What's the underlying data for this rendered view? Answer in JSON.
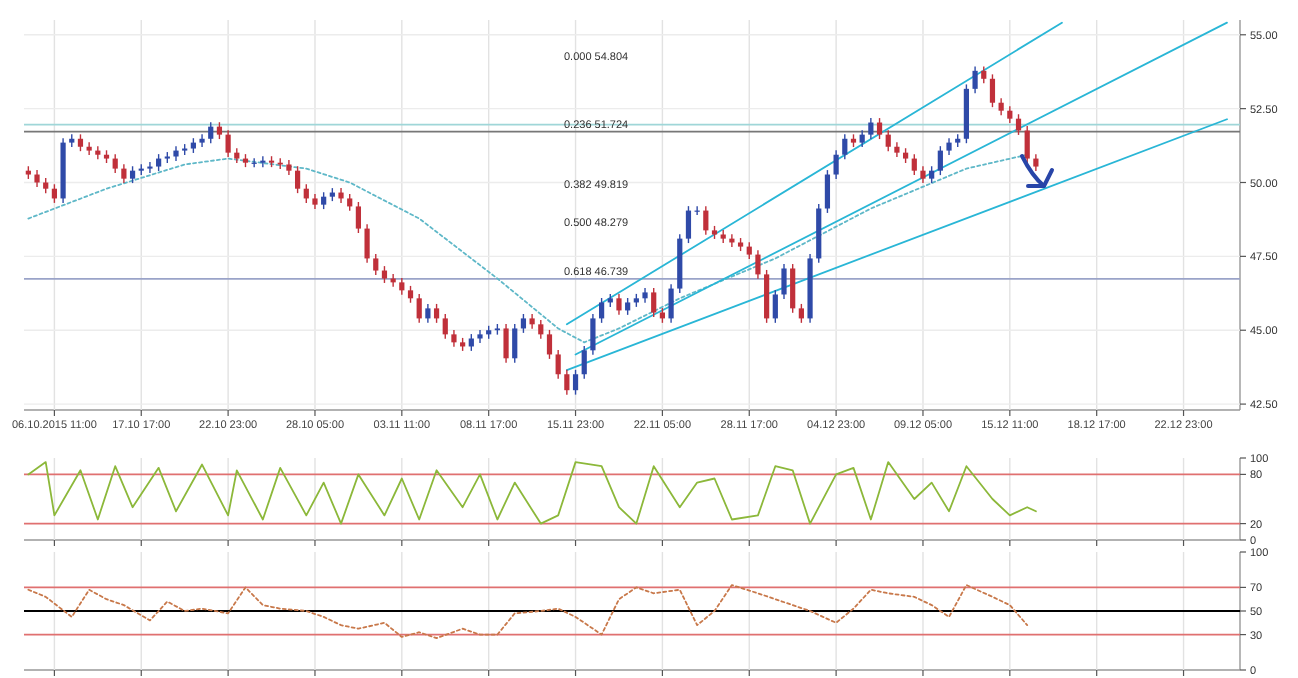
{
  "chart_data": [
    {
      "type": "candlestick",
      "grid": true,
      "categories": [
        null,
        null,
        null,
        "06.10.2015 11:00",
        null,
        null,
        null,
        null,
        null,
        null,
        null,
        null,
        null,
        "17.10 17:00",
        null,
        null,
        null,
        null,
        null,
        null,
        null,
        null,
        null,
        "22.10 23:00",
        null,
        null,
        null,
        null,
        null,
        null,
        null,
        null,
        null,
        "28.10 05:00",
        null,
        null,
        null,
        null,
        null,
        null,
        null,
        null,
        null,
        "03.11 11:00",
        null,
        null,
        null,
        null,
        null,
        null,
        null,
        null,
        null,
        "08.11 17:00",
        null,
        null,
        null,
        null,
        null,
        null,
        null,
        null,
        null,
        "15.11 23:00",
        null,
        null,
        null,
        null,
        null,
        null,
        null,
        null,
        null,
        "22.11 05:00",
        null,
        null,
        null,
        null,
        null,
        null,
        null,
        null,
        null,
        "28.11 17:00",
        null,
        null,
        null,
        null,
        null,
        null,
        null,
        null,
        null,
        "04.12 23:00",
        null,
        null,
        null,
        null,
        null,
        null,
        null,
        null,
        null,
        "09.12 05:00",
        null,
        null,
        null,
        null,
        null,
        null,
        null,
        null,
        null,
        "15.12 11:00",
        null,
        null,
        null,
        null,
        null,
        null,
        null,
        null,
        null,
        "18.12 17:00",
        null,
        null,
        null,
        null,
        null,
        null,
        null,
        null,
        null,
        "22.12 23:00",
        null,
        null,
        null,
        null,
        null,
        null
      ],
      "ohlc": [
        [
          50.4,
          50.55,
          50.12,
          50.27
        ],
        [
          50.27,
          50.42,
          49.85,
          50.0
        ],
        [
          50.0,
          50.15,
          49.64,
          49.79
        ],
        [
          49.79,
          49.94,
          49.31,
          49.46
        ],
        [
          49.46,
          51.5,
          49.31,
          51.35
        ],
        [
          51.35,
          51.63,
          51.2,
          51.48
        ],
        [
          51.48,
          51.63,
          51.06,
          51.21
        ],
        [
          51.21,
          51.36,
          50.93,
          51.08
        ],
        [
          51.08,
          51.23,
          50.79,
          50.94
        ],
        [
          50.94,
          51.09,
          50.66,
          50.81
        ],
        [
          50.81,
          50.96,
          50.32,
          50.47
        ],
        [
          50.47,
          50.62,
          49.98,
          50.13
        ],
        [
          50.13,
          50.55,
          49.98,
          50.4
        ],
        [
          50.4,
          50.62,
          50.25,
          50.47
        ],
        [
          50.47,
          50.69,
          50.32,
          50.54
        ],
        [
          50.54,
          50.96,
          50.39,
          50.81
        ],
        [
          50.81,
          51.03,
          50.66,
          50.88
        ],
        [
          50.88,
          51.23,
          50.73,
          51.08
        ],
        [
          51.08,
          51.3,
          50.93,
          51.15
        ],
        [
          51.15,
          51.5,
          51.0,
          51.35
        ],
        [
          51.35,
          51.63,
          51.2,
          51.48
        ],
        [
          51.48,
          52.04,
          51.33,
          51.89
        ],
        [
          51.89,
          52.04,
          51.47,
          51.62
        ],
        [
          51.62,
          51.77,
          50.86,
          51.01
        ],
        [
          51.01,
          51.16,
          50.66,
          50.81
        ],
        [
          50.81,
          50.96,
          50.52,
          50.67
        ],
        [
          50.67,
          50.82,
          50.52,
          50.67
        ],
        [
          50.67,
          50.89,
          50.52,
          50.74
        ],
        [
          50.74,
          50.89,
          50.52,
          50.67
        ],
        [
          50.67,
          50.82,
          50.46,
          50.61
        ],
        [
          50.61,
          50.76,
          50.25,
          50.4
        ],
        [
          50.4,
          50.55,
          49.64,
          49.79
        ],
        [
          49.79,
          49.94,
          49.31,
          49.46
        ],
        [
          49.46,
          49.61,
          49.1,
          49.25
        ],
        [
          49.25,
          49.67,
          49.1,
          49.52
        ],
        [
          49.52,
          49.81,
          49.37,
          49.66
        ],
        [
          49.66,
          49.81,
          49.31,
          49.46
        ],
        [
          49.46,
          49.61,
          49.04,
          49.19
        ],
        [
          49.19,
          49.34,
          48.29,
          48.44
        ],
        [
          48.44,
          48.59,
          47.28,
          47.43
        ],
        [
          47.43,
          47.58,
          46.87,
          47.02
        ],
        [
          47.02,
          47.17,
          46.6,
          46.75
        ],
        [
          46.75,
          46.9,
          46.47,
          46.62
        ],
        [
          46.62,
          46.77,
          46.2,
          46.35
        ],
        [
          46.35,
          46.5,
          45.93,
          46.08
        ],
        [
          46.08,
          46.23,
          45.25,
          45.4
        ],
        [
          45.4,
          45.89,
          45.25,
          45.74
        ],
        [
          45.74,
          45.89,
          45.25,
          45.4
        ],
        [
          45.4,
          45.55,
          44.71,
          44.86
        ],
        [
          44.86,
          45.01,
          44.44,
          44.59
        ],
        [
          44.59,
          44.74,
          44.3,
          44.45
        ],
        [
          44.45,
          44.87,
          44.3,
          44.72
        ],
        [
          44.72,
          45.01,
          44.57,
          44.86
        ],
        [
          44.86,
          45.15,
          44.71,
          45.0
        ],
        [
          45.0,
          45.21,
          44.85,
          45.06
        ],
        [
          45.06,
          45.21,
          43.9,
          44.05
        ],
        [
          44.05,
          45.21,
          43.9,
          45.06
        ],
        [
          45.06,
          45.55,
          44.91,
          45.4
        ],
        [
          45.4,
          45.55,
          45.05,
          45.2
        ],
        [
          45.2,
          45.35,
          44.71,
          44.86
        ],
        [
          44.86,
          45.01,
          44.03,
          44.18
        ],
        [
          44.18,
          44.33,
          43.36,
          43.51
        ],
        [
          43.51,
          43.66,
          42.82,
          42.97
        ],
        [
          42.97,
          43.66,
          42.82,
          43.51
        ],
        [
          43.51,
          44.47,
          43.36,
          44.32
        ],
        [
          44.32,
          45.55,
          44.17,
          45.4
        ],
        [
          45.4,
          46.09,
          45.25,
          45.94
        ],
        [
          45.94,
          46.23,
          45.79,
          46.08
        ],
        [
          46.08,
          46.23,
          45.52,
          45.67
        ],
        [
          45.67,
          46.09,
          45.52,
          45.94
        ],
        [
          45.94,
          46.23,
          45.79,
          46.08
        ],
        [
          46.08,
          46.43,
          45.93,
          46.28
        ],
        [
          46.28,
          46.43,
          45.45,
          45.6
        ],
        [
          45.6,
          45.75,
          45.25,
          45.4
        ],
        [
          45.4,
          46.56,
          45.25,
          46.41
        ],
        [
          46.41,
          48.25,
          46.26,
          48.1
        ],
        [
          48.1,
          49.2,
          47.95,
          49.05
        ],
        [
          49.05,
          49.2,
          48.9,
          49.05
        ],
        [
          49.05,
          49.2,
          48.23,
          48.38
        ],
        [
          48.38,
          48.53,
          48.09,
          48.24
        ],
        [
          48.24,
          48.39,
          47.95,
          48.1
        ],
        [
          48.1,
          48.25,
          47.82,
          47.97
        ],
        [
          47.97,
          48.12,
          47.68,
          47.83
        ],
        [
          47.83,
          47.98,
          47.41,
          47.56
        ],
        [
          47.56,
          47.71,
          46.74,
          46.89
        ],
        [
          46.89,
          47.04,
          45.25,
          45.4
        ],
        [
          45.4,
          46.36,
          45.25,
          46.21
        ],
        [
          46.21,
          47.24,
          46.06,
          47.09
        ],
        [
          47.09,
          47.24,
          45.59,
          45.74
        ],
        [
          45.74,
          45.89,
          45.25,
          45.4
        ],
        [
          45.4,
          47.58,
          45.25,
          47.43
        ],
        [
          47.43,
          49.27,
          47.28,
          49.12
        ],
        [
          49.12,
          50.42,
          48.97,
          50.27
        ],
        [
          50.27,
          51.09,
          50.12,
          50.94
        ],
        [
          50.94,
          51.63,
          50.79,
          51.48
        ],
        [
          51.48,
          51.63,
          51.2,
          51.35
        ],
        [
          51.35,
          51.77,
          51.2,
          51.62
        ],
        [
          51.62,
          52.18,
          51.47,
          52.03
        ],
        [
          52.03,
          52.18,
          51.47,
          51.62
        ],
        [
          51.62,
          51.77,
          51.06,
          51.21
        ],
        [
          51.21,
          51.36,
          50.86,
          51.01
        ],
        [
          51.01,
          51.16,
          50.66,
          50.81
        ],
        [
          50.81,
          50.96,
          50.25,
          50.4
        ],
        [
          50.4,
          50.55,
          49.98,
          50.13
        ],
        [
          50.13,
          50.55,
          49.98,
          50.4
        ],
        [
          50.4,
          51.23,
          50.25,
          51.08
        ],
        [
          51.08,
          51.5,
          50.93,
          51.35
        ],
        [
          51.35,
          51.63,
          51.2,
          51.48
        ],
        [
          51.48,
          53.32,
          51.33,
          53.17
        ],
        [
          53.17,
          53.93,
          53.02,
          53.78
        ],
        [
          53.78,
          53.93,
          53.36,
          53.51
        ],
        [
          53.51,
          53.66,
          52.55,
          52.7
        ],
        [
          52.7,
          52.85,
          52.28,
          52.43
        ],
        [
          52.43,
          52.58,
          52.01,
          52.16
        ],
        [
          52.16,
          52.31,
          51.61,
          51.76
        ],
        [
          51.76,
          51.91,
          50.66,
          50.81
        ],
        [
          50.81,
          50.96,
          50.39,
          50.54
        ],
        null,
        null,
        null,
        null,
        null,
        null,
        null,
        null,
        null,
        null,
        null,
        null,
        null,
        null,
        null,
        null,
        null,
        null,
        null,
        null,
        null,
        null,
        null
      ],
      "series": [
        {
          "type": "line",
          "color": "#5fb8c8",
          "line_style": "dotted",
          "values": [
            48.78,
            null,
            null,
            null,
            null,
            null,
            null,
            null,
            null,
            49.79,
            null,
            null,
            null,
            null,
            null,
            null,
            null,
            null,
            50.61,
            null,
            null,
            null,
            null,
            50.81,
            null,
            null,
            null,
            null,
            null,
            null,
            null,
            null,
            50.47,
            null,
            null,
            null,
            null,
            50.0,
            null,
            null,
            null,
            null,
            null,
            null,
            null,
            48.78,
            null,
            null,
            null,
            null,
            null,
            null,
            null,
            null,
            46.75,
            null,
            null,
            null,
            null,
            null,
            null,
            45.06,
            null,
            null,
            44.59,
            null,
            null,
            null,
            45.06,
            null,
            null,
            null,
            null,
            null,
            null,
            46.08,
            null,
            null,
            null,
            null,
            null,
            null,
            null,
            null,
            null,
            null,
            47.43,
            null,
            null,
            null,
            null,
            null,
            null,
            null,
            null,
            null,
            null,
            49.12,
            null,
            null,
            null,
            null,
            null,
            null,
            null,
            null,
            null,
            null,
            50.47,
            null,
            null,
            null,
            null,
            null,
            null,
            50.94,
            null,
            null,
            null,
            null,
            null,
            null,
            null,
            null,
            null,
            null,
            null,
            null,
            null,
            null,
            null,
            null,
            null,
            null,
            null,
            null,
            null,
            null,
            null,
            null
          ]
        },
        {
          "type": "line",
          "color": "#29b6d6",
          "values": [
            null,
            null,
            null,
            null,
            null,
            null,
            null,
            null,
            null,
            null,
            null,
            null,
            null,
            null,
            null,
            null,
            null,
            null,
            null,
            null,
            null,
            null,
            null,
            null,
            null,
            null,
            null,
            null,
            null,
            null,
            null,
            null,
            null,
            null,
            null,
            null,
            null,
            null,
            null,
            null,
            null,
            null,
            null,
            null,
            null,
            null,
            null,
            null,
            null,
            null,
            null,
            null,
            null,
            null,
            null,
            null,
            null,
            null,
            null,
            null,
            null,
            null,
            45.2,
            null,
            null,
            null,
            null,
            null,
            null,
            null,
            null,
            null,
            null,
            null,
            null,
            null,
            null,
            null,
            null,
            null,
            null,
            null,
            null,
            null,
            null,
            null,
            null,
            null,
            null,
            null,
            null,
            null,
            null,
            null,
            null,
            null,
            null,
            null,
            null,
            null,
            null,
            null,
            null,
            null,
            null,
            null,
            null,
            null,
            null,
            null,
            null,
            null,
            null,
            null,
            null,
            null,
            null,
            null,
            null,
            55.41,
            null,
            null,
            null,
            null,
            null,
            null,
            null,
            null,
            null,
            null,
            null,
            null,
            null,
            null,
            null,
            null,
            null,
            null,
            null,
            null
          ]
        },
        {
          "type": "line",
          "color": "#29b6d6",
          "values": [
            null,
            null,
            null,
            null,
            null,
            null,
            null,
            null,
            null,
            null,
            null,
            null,
            null,
            null,
            null,
            null,
            null,
            null,
            null,
            null,
            null,
            null,
            null,
            null,
            null,
            null,
            null,
            null,
            null,
            null,
            null,
            null,
            null,
            null,
            null,
            null,
            null,
            null,
            null,
            null,
            null,
            null,
            null,
            null,
            null,
            null,
            null,
            null,
            null,
            null,
            null,
            null,
            null,
            null,
            null,
            null,
            null,
            null,
            null,
            null,
            null,
            null,
            null,
            44.18,
            null,
            null,
            null,
            null,
            null,
            null,
            null,
            null,
            null,
            null,
            null,
            null,
            null,
            null,
            null,
            null,
            null,
            null,
            null,
            null,
            null,
            null,
            null,
            null,
            null,
            null,
            null,
            null,
            null,
            null,
            null,
            null,
            null,
            null,
            null,
            null,
            null,
            null,
            null,
            null,
            null,
            null,
            null,
            null,
            null,
            null,
            null,
            null,
            null,
            null,
            null,
            null,
            null,
            null,
            null,
            null,
            null,
            null,
            null,
            null,
            null,
            null,
            null,
            null,
            null,
            null,
            null,
            null,
            null,
            null,
            null,
            null,
            null,
            null,
            55.41,
            null
          ]
        },
        {
          "type": "line",
          "color": "#29b6d6",
          "values": [
            null,
            null,
            null,
            null,
            null,
            null,
            null,
            null,
            null,
            null,
            null,
            null,
            null,
            null,
            null,
            null,
            null,
            null,
            null,
            null,
            null,
            null,
            null,
            null,
            null,
            null,
            null,
            null,
            null,
            null,
            null,
            null,
            null,
            null,
            null,
            null,
            null,
            null,
            null,
            null,
            null,
            null,
            null,
            null,
            null,
            null,
            null,
            null,
            null,
            null,
            null,
            null,
            null,
            null,
            null,
            null,
            null,
            null,
            null,
            null,
            null,
            null,
            43.65,
            null,
            null,
            null,
            null,
            null,
            null,
            null,
            null,
            null,
            null,
            null,
            null,
            null,
            null,
            null,
            null,
            null,
            null,
            null,
            null,
            null,
            null,
            null,
            null,
            null,
            null,
            null,
            null,
            null,
            null,
            null,
            null,
            null,
            null,
            null,
            null,
            null,
            null,
            null,
            null,
            null,
            null,
            null,
            null,
            null,
            null,
            null,
            null,
            null,
            null,
            null,
            null,
            null,
            null,
            null,
            null,
            null,
            null,
            null,
            null,
            null,
            null,
            null,
            null,
            null,
            null,
            null,
            null,
            null,
            null,
            null,
            null,
            null,
            null,
            null,
            52.14,
            null
          ]
        }
      ],
      "ref_lines": [
        {
          "axis": "y",
          "value": 51.96,
          "color": "#9fd6d8"
        },
        {
          "axis": "y",
          "value": 51.724,
          "color": "#777777"
        },
        {
          "axis": "y",
          "value": 46.739,
          "color": "#9aa3c8"
        }
      ],
      "annotations": [
        "0.000 54.804",
        {
          "text": "0.236 51.724",
          "y": 51.724
        },
        "0.382 49.819",
        "0.500 48.279",
        {
          "text": "0.618 46.739",
          "y": 46.739
        }
      ],
      "ylim": [
        42.3,
        55.5
      ],
      "yticks": [
        {
          "value": 55,
          "label": "55.00"
        },
        {
          "value": 52.5,
          "label": "52.50"
        },
        {
          "value": 50,
          "label": "50.00"
        },
        {
          "value": 47.5,
          "label": "47.50"
        },
        {
          "value": 45,
          "label": "45.00"
        },
        {
          "value": 42.5,
          "label": "42.50"
        }
      ]
    },
    {
      "type": "line",
      "grid": "x",
      "tick_labels": "y",
      "categories": [
        null,
        null,
        null,
        null,
        null,
        null,
        null,
        null,
        null,
        null,
        null,
        null,
        null,
        null,
        null,
        null,
        null,
        null,
        null,
        null,
        null,
        null,
        null,
        null,
        null,
        null,
        null,
        null,
        null,
        null,
        null,
        null,
        null,
        null,
        null,
        null,
        null,
        null,
        null,
        null,
        null,
        null,
        null,
        null,
        null,
        null,
        null,
        null,
        null,
        null,
        null,
        null,
        null,
        null,
        null,
        null,
        null,
        null,
        null,
        null,
        null,
        null,
        null,
        null,
        null,
        null,
        null,
        null,
        null,
        null,
        null,
        null,
        null,
        null,
        null,
        null,
        null,
        null,
        null,
        null,
        null,
        null,
        null,
        null,
        null,
        null,
        null,
        null,
        null,
        null,
        null,
        null,
        null,
        null,
        null,
        null,
        null,
        null,
        null,
        null,
        null,
        null,
        null,
        null,
        null,
        null,
        null,
        null,
        null,
        null,
        null,
        null,
        null,
        null,
        null,
        null,
        null,
        null,
        null,
        null,
        null,
        null,
        null,
        null,
        null,
        null,
        null,
        null,
        null,
        null,
        null,
        null,
        null,
        null,
        null,
        null,
        null,
        null,
        null,
        null
      ],
      "series": [
        {
          "color": "#8cb83a",
          "values": [
            80,
            null,
            95,
            30,
            null,
            null,
            85,
            null,
            25,
            null,
            90,
            null,
            40,
            null,
            null,
            88,
            null,
            35,
            null,
            null,
            92,
            null,
            null,
            30,
            85,
            null,
            null,
            25,
            null,
            88,
            null,
            null,
            30,
            null,
            70,
            null,
            20,
            null,
            80,
            null,
            null,
            30,
            null,
            75,
            null,
            25,
            null,
            85,
            null,
            null,
            40,
            null,
            80,
            null,
            25,
            null,
            70,
            null,
            null,
            20,
            null,
            30,
            null,
            95,
            null,
            null,
            90,
            null,
            40,
            null,
            20,
            null,
            90,
            null,
            null,
            40,
            null,
            70,
            null,
            75,
            null,
            25,
            null,
            null,
            30,
            null,
            90,
            null,
            85,
            null,
            20,
            null,
            null,
            80,
            null,
            88,
            null,
            25,
            null,
            95,
            null,
            null,
            50,
            null,
            70,
            null,
            35,
            null,
            90,
            null,
            null,
            50,
            null,
            30,
            null,
            40,
            35,
            null,
            null,
            null,
            null,
            null,
            null,
            null,
            null,
            null,
            null,
            null,
            null,
            null,
            null,
            null,
            null,
            null,
            null,
            null,
            null,
            null,
            null,
            null
          ]
        }
      ],
      "ref_lines": [
        {
          "axis": "y",
          "value": 80,
          "color": "#e07070"
        },
        {
          "axis": "y",
          "value": 20,
          "color": "#e07070"
        }
      ],
      "ylim": [
        0,
        100
      ],
      "yticks": [
        100,
        80,
        20,
        0
      ]
    },
    {
      "type": "line",
      "grid": "x",
      "tick_labels": "y",
      "categories": [
        null,
        null,
        null,
        null,
        null,
        null,
        null,
        null,
        null,
        null,
        null,
        null,
        null,
        null,
        null,
        null,
        null,
        null,
        null,
        null,
        null,
        null,
        null,
        null,
        null,
        null,
        null,
        null,
        null,
        null,
        null,
        null,
        null,
        null,
        null,
        null,
        null,
        null,
        null,
        null,
        null,
        null,
        null,
        null,
        null,
        null,
        null,
        null,
        null,
        null,
        null,
        null,
        null,
        null,
        null,
        null,
        null,
        null,
        null,
        null,
        null,
        null,
        null,
        null,
        null,
        null,
        null,
        null,
        null,
        null,
        null,
        null,
        null,
        null,
        null,
        null,
        null,
        null,
        null,
        null,
        null,
        null,
        null,
        null,
        null,
        null,
        null,
        null,
        null,
        null,
        null,
        null,
        null,
        null,
        null,
        null,
        null,
        null,
        null,
        null,
        null,
        null,
        null,
        null,
        null,
        null,
        null,
        null,
        null,
        null,
        null,
        null,
        null,
        null,
        null,
        null,
        null,
        null,
        null,
        null,
        null,
        null,
        null,
        null,
        null,
        null,
        null,
        null,
        null,
        null,
        null,
        null,
        null,
        null,
        null,
        null,
        null,
        null,
        null,
        null
      ],
      "series": [
        {
          "color": "#c8784a",
          "line_style": "dotted",
          "values": [
            68,
            null,
            62,
            null,
            null,
            45,
            null,
            68,
            null,
            60,
            null,
            55,
            null,
            null,
            42,
            null,
            58,
            null,
            50,
            null,
            52,
            null,
            null,
            48,
            null,
            70,
            null,
            55,
            null,
            52,
            null,
            null,
            50,
            null,
            45,
            null,
            38,
            null,
            35,
            null,
            null,
            40,
            null,
            28,
            null,
            32,
            null,
            27,
            null,
            null,
            35,
            null,
            30,
            null,
            30,
            null,
            48,
            null,
            null,
            50,
            null,
            52,
            null,
            45,
            null,
            null,
            30,
            null,
            60,
            null,
            70,
            null,
            65,
            null,
            null,
            68,
            null,
            38,
            null,
            50,
            null,
            72,
            null,
            null,
            65,
            null,
            60,
            null,
            55,
            null,
            50,
            null,
            null,
            40,
            null,
            52,
            null,
            68,
            null,
            65,
            null,
            null,
            62,
            null,
            55,
            null,
            45,
            null,
            72,
            null,
            null,
            62,
            null,
            55,
            null,
            38,
            null,
            null,
            null,
            null,
            null,
            null,
            null,
            null,
            null,
            null,
            null,
            null,
            null,
            null,
            null,
            null,
            null,
            null,
            null,
            null,
            null,
            null,
            null,
            null
          ]
        }
      ],
      "ref_lines": [
        {
          "axis": "y",
          "value": 70,
          "color": "#e07070"
        },
        {
          "axis": "y",
          "value": 50,
          "color": "#000000"
        },
        {
          "axis": "y",
          "value": 30,
          "color": "#e07070"
        }
      ],
      "ylim": [
        0,
        100
      ],
      "yticks": [
        100,
        70,
        50,
        30,
        0
      ]
    }
  ]
}
